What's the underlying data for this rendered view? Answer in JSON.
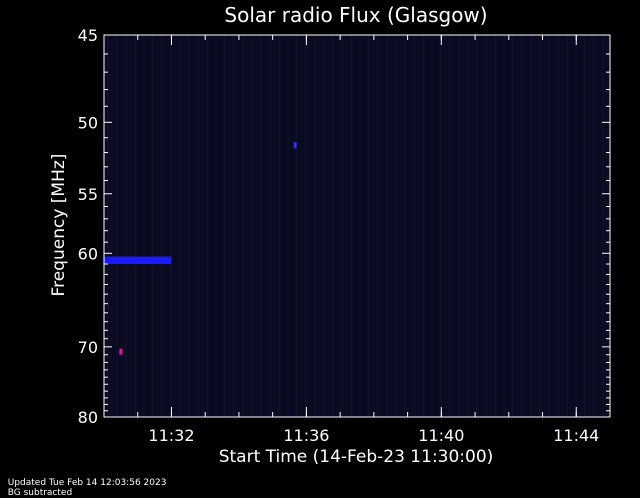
{
  "chart_data": {
    "type": "heatmap",
    "title": "Solar radio Flux (Glasgow)",
    "xlabel": "Start Time (14-Feb-23 11:30:00)",
    "ylabel": "Frequency [MHz]",
    "x_range_minutes": [
      "11:30",
      "11:45"
    ],
    "x_ticks": [
      "11:32",
      "11:36",
      "11:40",
      "11:44"
    ],
    "y_range": [
      45,
      80
    ],
    "y_scale": "reciprocal",
    "y_ticks": [
      45,
      50,
      55,
      60,
      70,
      80
    ],
    "background_color": "#0a0a20",
    "features": [
      {
        "name": "burst-band",
        "frequency_mhz": [
          60.3,
          61.0
        ],
        "time": [
          "11:30",
          "11:32"
        ],
        "color": "#1a1aff"
      },
      {
        "name": "spot-a",
        "frequency_mhz": 51.5,
        "time": "11:35:40",
        "color": "#3333ff"
      },
      {
        "name": "spot-b",
        "frequency_mhz": 70.6,
        "time": "11:30:30",
        "color": "#ff00aa"
      }
    ]
  },
  "footer": {
    "updated": "Updated Tue Feb 14 12:03:56 2023",
    "mode": "BG subtracted"
  }
}
